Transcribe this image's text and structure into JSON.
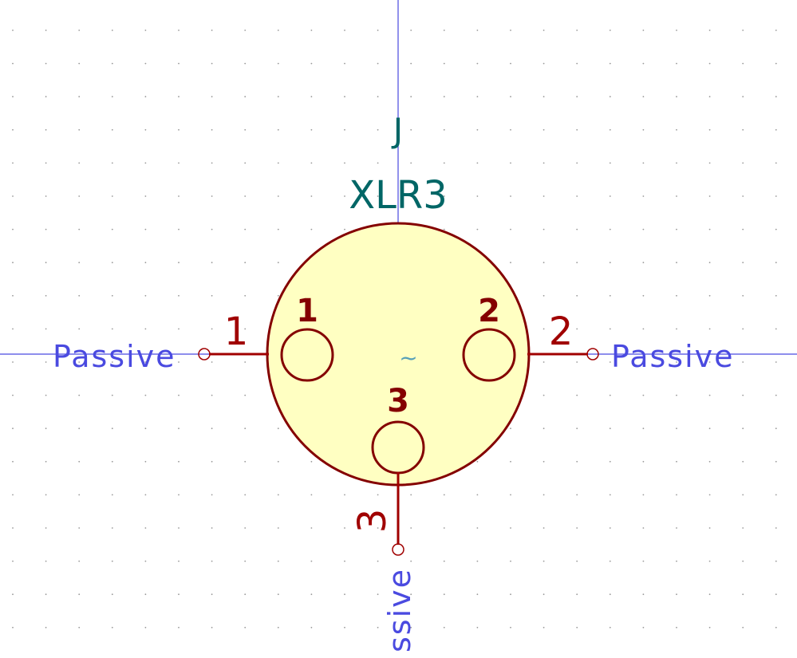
{
  "canvas": {
    "background": "#ffffff",
    "grid_color": "#9a9a9a",
    "crosshair_color": "#4a4ae0"
  },
  "symbol": {
    "reference": "J",
    "value": "XLR3",
    "center_marker": "~",
    "body_fill": "#ffffc2",
    "body_stroke": "#840000",
    "field_color": "#006666",
    "marker_color": "#56a0b8"
  },
  "pins": [
    {
      "number": "1",
      "inner_label": "1",
      "type": "Passive",
      "side": "left"
    },
    {
      "number": "2",
      "inner_label": "2",
      "type": "Passive",
      "side": "right"
    },
    {
      "number": "3",
      "inner_label": "3",
      "type": "ssive",
      "side": "bottom"
    }
  ],
  "colors": {
    "pin": "#a00000",
    "pin_type_text": "#4a4ae0"
  }
}
